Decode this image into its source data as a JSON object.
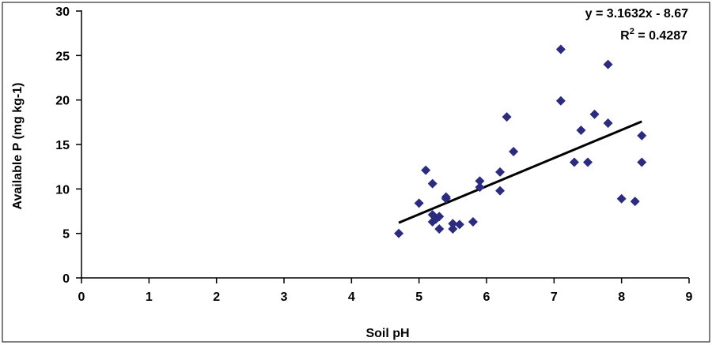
{
  "chart_data": {
    "type": "scatter",
    "title": "",
    "xlabel": "Soil pH",
    "ylabel": "Available P (mg kg-1)",
    "xlim": [
      0,
      9
    ],
    "ylim": [
      0,
      30
    ],
    "xticks": [
      0,
      1,
      2,
      3,
      4,
      5,
      6,
      7,
      8,
      9
    ],
    "yticks": [
      0,
      5,
      10,
      15,
      20,
      25,
      30
    ],
    "grid": false,
    "legend": "none",
    "marker_color": "#2b2b7f",
    "trendline_color": "#000000",
    "series": [
      {
        "marker": "diamond",
        "points": [
          [
            4.7,
            5.0
          ],
          [
            5.0,
            8.4
          ],
          [
            5.1,
            12.1
          ],
          [
            5.2,
            10.6
          ],
          [
            5.2,
            7.1
          ],
          [
            5.2,
            6.3
          ],
          [
            5.25,
            6.6
          ],
          [
            5.3,
            6.9
          ],
          [
            5.3,
            5.5
          ],
          [
            5.4,
            9.1
          ],
          [
            5.4,
            8.9
          ],
          [
            5.5,
            6.1
          ],
          [
            5.5,
            5.5
          ],
          [
            5.6,
            6.0
          ],
          [
            5.8,
            6.3
          ],
          [
            5.9,
            10.9
          ],
          [
            5.9,
            10.2
          ],
          [
            6.2,
            11.9
          ],
          [
            6.2,
            9.8
          ],
          [
            6.3,
            18.1
          ],
          [
            6.4,
            14.2
          ],
          [
            7.1,
            25.7
          ],
          [
            7.1,
            19.9
          ],
          [
            7.3,
            13.0
          ],
          [
            7.4,
            16.6
          ],
          [
            7.5,
            13.0
          ],
          [
            7.6,
            18.4
          ],
          [
            7.8,
            24.0
          ],
          [
            7.8,
            17.4
          ],
          [
            8.0,
            8.9
          ],
          [
            8.2,
            8.6
          ],
          [
            8.3,
            16.0
          ],
          [
            8.3,
            13.0
          ]
        ]
      }
    ],
    "trendline": {
      "slope": 3.1632,
      "intercept": -8.67,
      "x_range": [
        4.7,
        8.3
      ],
      "equation_text": "y = 3.1632x - 8.67",
      "r2_prefix": "R",
      "r2_superscript": "2",
      "r2_value_text": " = 0.4287"
    }
  }
}
